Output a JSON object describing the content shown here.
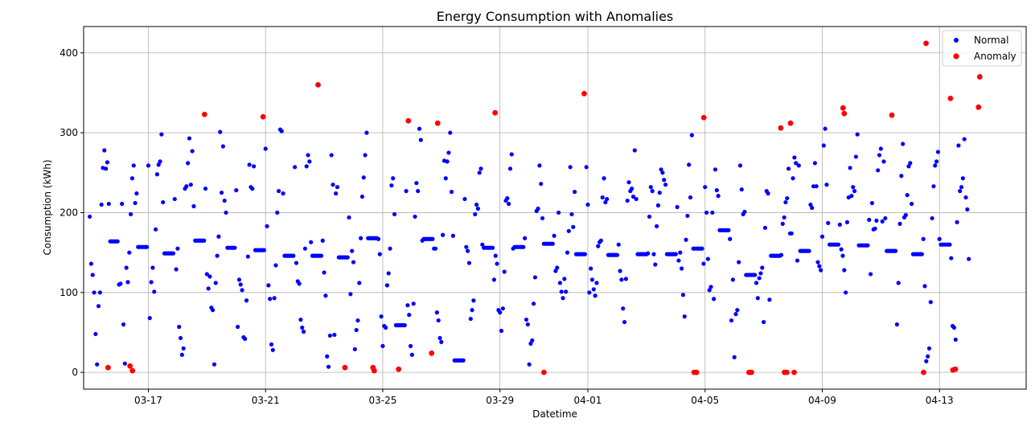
{
  "chart_data": {
    "type": "scatter",
    "title": "Energy Consumption with Anomalies",
    "xlabel": "Datetime",
    "ylabel": "Consumption (kWh)",
    "x_start": "2024-03-15",
    "x_end": "2024-04-15",
    "xlim": [
      "2024-03-14T19:00",
      "2024-04-15T23:00"
    ],
    "ylim": [
      -21,
      433
    ],
    "xticks": [
      "03-17",
      "03-21",
      "03-25",
      "03-29",
      "04-01",
      "04-05",
      "04-09",
      "04-13"
    ],
    "xtick_dates": [
      "2024-03-17",
      "2024-03-21",
      "2024-03-25",
      "2024-03-29",
      "2024-04-01",
      "2024-04-05",
      "2024-04-09",
      "2024-04-13"
    ],
    "yticks": [
      0,
      100,
      200,
      300,
      400
    ],
    "grid": true,
    "legend_position": "top-right",
    "colors": {
      "normal": "#0000ff",
      "anomaly": "#ff0000"
    },
    "series": [
      {
        "name": "Normal",
        "color": "#0000ff",
        "values": [
          195,
          136,
          122,
          100,
          48,
          10,
          83,
          100,
          210,
          256,
          278,
          255,
          263,
          211,
          164,
          164,
          164,
          164,
          164,
          164,
          110,
          111,
          211,
          60,
          11,
          131,
          113,
          150,
          198,
          243,
          259,
          212,
          224,
          157,
          157,
          157,
          157,
          157,
          157,
          157,
          259,
          68,
          113,
          131,
          101,
          179,
          248,
          260,
          264,
          298,
          213,
          149,
          149,
          149,
          149,
          149,
          149,
          149,
          217,
          129,
          155,
          57,
          43,
          22,
          30,
          230,
          233,
          262,
          293,
          235,
          277,
          208,
          165,
          165,
          165,
          165,
          165,
          165,
          165,
          230,
          123,
          105,
          120,
          81,
          78,
          10,
          112,
          146,
          170,
          301,
          225,
          283,
          215,
          200,
          156,
          156,
          156,
          156,
          156,
          156,
          228,
          57,
          116,
          110,
          103,
          44,
          42,
          90,
          145,
          260,
          232,
          230,
          258,
          153,
          153,
          153,
          153,
          153,
          153,
          153,
          280,
          183,
          109,
          92,
          35,
          28,
          93,
          134,
          200,
          227,
          304,
          302,
          224,
          146,
          146,
          146,
          146,
          146,
          146,
          146,
          257,
          137,
          114,
          111,
          66,
          56,
          51,
          155,
          258,
          272,
          264,
          163,
          146,
          146,
          146,
          146,
          146,
          146,
          146,
          165,
          125,
          96,
          20,
          7,
          46,
          272,
          235,
          47,
          224,
          232,
          144,
          144,
          144,
          144,
          144,
          144,
          144,
          194,
          98,
          152,
          138,
          29,
          53,
          65,
          112,
          168,
          220,
          244,
          272,
          300,
          168,
          168,
          168,
          168,
          168,
          168,
          168,
          167,
          148,
          70,
          33,
          58,
          56,
          109,
          124,
          155,
          234,
          243,
          198,
          59,
          59,
          59,
          59,
          59,
          59,
          59,
          227,
          84,
          72,
          33,
          22,
          86,
          195,
          237,
          227,
          305,
          291,
          165,
          167,
          167,
          167,
          167,
          167,
          167,
          167,
          155,
          155,
          75,
          65,
          43,
          38,
          172,
          265,
          243,
          264,
          275,
          300,
          226,
          171,
          15,
          15,
          15,
          15,
          15,
          15,
          15,
          217,
          157,
          152,
          137,
          67,
          78,
          90,
          198,
          210,
          205,
          250,
          255,
          160,
          156,
          156,
          156,
          156,
          156,
          156,
          156,
          116,
          146,
          136,
          78,
          75,
          52,
          80,
          126,
          215,
          218,
          211,
          255,
          273,
          155,
          157,
          157,
          157,
          157,
          157,
          157,
          157,
          168,
          66,
          60,
          10,
          36,
          40,
          86,
          119,
          202,
          205,
          259,
          236,
          193,
          161,
          161,
          161,
          161,
          161,
          161,
          161,
          171,
          127,
          131,
          200,
          112,
          101,
          93,
          117,
          101,
          150,
          177,
          257,
          198,
          182,
          226,
          148,
          148,
          148,
          148,
          148,
          148,
          148,
          257,
          210,
          100,
          130,
          116,
          104,
          96,
          112,
          158,
          163,
          165,
          219,
          243,
          213,
          217,
          147,
          147,
          147,
          147,
          147,
          147,
          147,
          160,
          127,
          116,
          80,
          63,
          117,
          215,
          238,
          227,
          230,
          220,
          278,
          217,
          148,
          148,
          148,
          148,
          148,
          148,
          148,
          149,
          195,
          232,
          227,
          148,
          135,
          183,
          209,
          225,
          254,
          250,
          241,
          235,
          148,
          148,
          148,
          148,
          148,
          148,
          148,
          207,
          140,
          150,
          130,
          97,
          70,
          166,
          196,
          260,
          219,
          297,
          155,
          155,
          155,
          155,
          155,
          155,
          155,
          136,
          232,
          200,
          142,
          103,
          107,
          200,
          92,
          254,
          228,
          221,
          178,
          178,
          178,
          178,
          178,
          178,
          178,
          167,
          65,
          116,
          19,
          73,
          78,
          138,
          259,
          229,
          198,
          201,
          122,
          122,
          122,
          122,
          122,
          122,
          122,
          112,
          93,
          118,
          124,
          131,
          63,
          181,
          227,
          224,
          91,
          146,
          146,
          146,
          146,
          146,
          146,
          146,
          147,
          186,
          194,
          213,
          218,
          255,
          174,
          174,
          243,
          269,
          262,
          140,
          259,
          152,
          152,
          152,
          152,
          152,
          152,
          152,
          210,
          206,
          233,
          262,
          233,
          138,
          133,
          128,
          170,
          284,
          305,
          235,
          187,
          160,
          160,
          160,
          160,
          160,
          160,
          160,
          185,
          154,
          146,
          128,
          100,
          188,
          219,
          256,
          221,
          232,
          227,
          270,
          298,
          159,
          159,
          159,
          159,
          159,
          159,
          159,
          191,
          123,
          212,
          179,
          180,
          190,
          253,
          272,
          280,
          189,
          264,
          193,
          152,
          152,
          152,
          152,
          152,
          152,
          152,
          60,
          112,
          186,
          246,
          286,
          194,
          197,
          222,
          258,
          262,
          211,
          148,
          148,
          148,
          148,
          148,
          148,
          148,
          167,
          108,
          14,
          20,
          30,
          88,
          193,
          233,
          259,
          264,
          276,
          167,
          160,
          160,
          160,
          160,
          160,
          160,
          160,
          143,
          58,
          56,
          41,
          188,
          284,
          227,
          232,
          243,
          292,
          219,
          204,
          142
        ]
      },
      {
        "name": "Anomaly",
        "color": "#ff0000",
        "x": [
          "2024-03-15T15:00",
          "2024-03-16T09:00",
          "2024-03-16T11:00",
          "2024-03-18T22:00",
          "2024-03-20T22:00",
          "2024-03-22T19:00",
          "2024-03-23T17:00",
          "2024-03-24T16:00",
          "2024-03-24T17:00",
          "2024-03-25T13:00",
          "2024-03-25T21:00",
          "2024-03-26T16:00",
          "2024-03-26T21:00",
          "2024-03-28T20:00",
          "2024-03-30T12:00",
          "2024-03-31T21:00",
          "2024-04-04T15:00",
          "2024-04-04T17:00",
          "2024-04-04T23:00",
          "2024-04-06T12:00",
          "2024-04-06T14:00",
          "2024-04-07T14:00",
          "2024-04-07T17:00",
          "2024-04-07T19:00",
          "2024-04-07T22:00",
          "2024-04-08T01:00",
          "2024-04-09T17:00",
          "2024-04-09T18:00",
          "2024-04-11T09:00",
          "2024-04-12T11:00",
          "2024-04-12T13:00",
          "2024-04-13T09:00",
          "2024-04-13T11:00",
          "2024-04-13T13:00",
          "2024-04-14T08:00",
          "2024-04-14T09:00"
        ],
        "values": [
          6,
          8,
          2,
          323,
          320,
          360,
          6,
          6,
          2,
          4,
          315,
          24,
          312,
          325,
          0,
          349,
          0,
          0,
          319,
          0,
          0,
          306,
          0,
          0,
          312,
          0,
          331,
          324,
          322,
          0,
          412,
          343,
          3,
          4,
          332,
          370
        ]
      }
    ]
  }
}
